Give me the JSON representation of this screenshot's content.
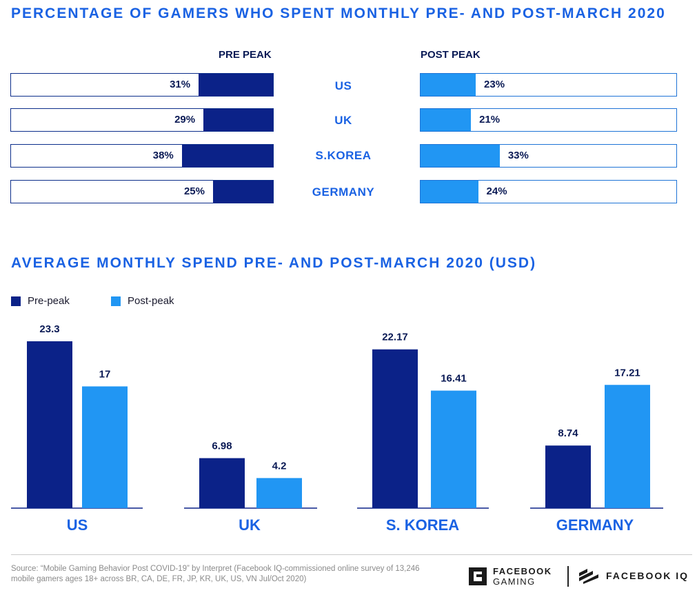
{
  "top_title": "PERCENTAGE OF GAMERS WHO SPENT MONTHLY PRE- AND POST-MARCH 2020",
  "pre_header": "PRE PEAK",
  "post_header": "POST PEAK",
  "colors": {
    "pre": "#0b2288",
    "post": "#2196f3",
    "title": "#1a62e3"
  },
  "bottom_title": "AVERAGE MONTHLY SPEND PRE- AND POST-MARCH 2020 (USD)",
  "legend": {
    "pre": "Pre-peak",
    "post": "Post-peak"
  },
  "source": "Source: “Mobile Gaming Behavior Post COVID-19” by Interpret (Facebook IQ-commissioned online survey of 13,246 mobile gamers ages 18+ across BR, CA, DE, FR, JP, KR, UK, US, VN Jul/Oct 2020)",
  "logos": {
    "gaming_line1": "FACEBOOK",
    "gaming_line2": "GAMING",
    "iq": "FACEBOOK IQ"
  },
  "chart_data": [
    {
      "type": "bar",
      "title": "PERCENTAGE OF GAMERS WHO SPENT MONTHLY PRE- AND POST-MARCH 2020",
      "categories": [
        "US",
        "UK",
        "S.KOREA",
        "GERMANY"
      ],
      "series": [
        {
          "name": "PRE PEAK",
          "values": [
            31,
            29,
            38,
            25
          ],
          "labels": [
            "31%",
            "29%",
            "38%",
            "25%"
          ]
        },
        {
          "name": "POST PEAK",
          "values": [
            23,
            21,
            33,
            24
          ],
          "labels": [
            "23%",
            "21%",
            "33%",
            "24%"
          ]
        }
      ],
      "unit": "%",
      "ylim": [
        0,
        100
      ]
    },
    {
      "type": "bar",
      "title": "AVERAGE MONTHLY SPEND PRE- AND POST-MARCH 2020 (USD)",
      "categories": [
        "US",
        "UK",
        "S. KOREA",
        "GERMANY"
      ],
      "series": [
        {
          "name": "Pre-peak",
          "values": [
            23.3,
            6.98,
            22.17,
            8.74
          ],
          "labels": [
            "23.3",
            "6.98",
            "22.17",
            "8.74"
          ]
        },
        {
          "name": "Post-peak",
          "values": [
            17,
            4.2,
            16.41,
            17.21
          ],
          "labels": [
            "17",
            "4.2",
            "16.41",
            "17.21"
          ]
        }
      ],
      "legend": "top-left",
      "grid": false,
      "ylim": [
        0,
        24.5
      ]
    }
  ]
}
